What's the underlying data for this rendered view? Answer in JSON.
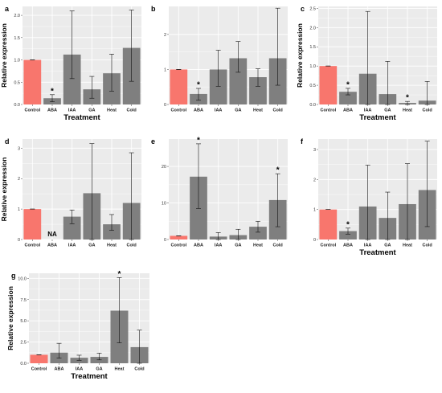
{
  "colors": {
    "control": "#f8766d",
    "treatment": "#7f7f7f",
    "panel_bg": "#ebebeb",
    "grid": "#ffffff"
  },
  "chart_data": [
    {
      "type": "bar",
      "panel": "a",
      "categories": [
        "Control",
        "ABA",
        "IAA",
        "GA",
        "Heat",
        "Cold"
      ],
      "values": [
        1.0,
        0.14,
        1.12,
        0.34,
        0.7,
        1.27
      ],
      "errors": [
        [
          1.0,
          1.0
        ],
        [
          0.06,
          0.22
        ],
        [
          0.58,
          2.1
        ],
        [
          0.14,
          0.63
        ],
        [
          0.3,
          1.13
        ],
        [
          0.52,
          2.12
        ]
      ],
      "significant": [
        false,
        true,
        false,
        false,
        false,
        false
      ],
      "xlabel": "Treatment",
      "ylabel": "Relative expression",
      "ylim": [
        0,
        2.2
      ],
      "yticks": [
        0,
        0.5,
        1.0,
        1.5,
        2.0
      ],
      "yticklabels": [
        "0.0",
        "0.5",
        "1.0",
        "1.5",
        "2.0"
      ],
      "grid": true
    },
    {
      "type": "bar",
      "panel": "b",
      "categories": [
        "Control",
        "ABA",
        "IAA",
        "GA",
        "Heat",
        "Cold"
      ],
      "values": [
        1.0,
        0.3,
        1.0,
        1.32,
        0.78,
        1.32
      ],
      "errors": [
        [
          1.0,
          1.0
        ],
        [
          0.12,
          0.46
        ],
        [
          0.52,
          1.55
        ],
        [
          0.92,
          1.8
        ],
        [
          0.52,
          1.02
        ],
        [
          0.55,
          2.75
        ]
      ],
      "significant": [
        false,
        true,
        false,
        false,
        false,
        false
      ],
      "xlabel": "",
      "ylabel": "",
      "ylim": [
        0,
        2.8
      ],
      "yticks": [
        0,
        1,
        2
      ],
      "yticklabels": [
        "0",
        "1",
        "2"
      ],
      "grid": true
    },
    {
      "type": "bar",
      "panel": "c",
      "categories": [
        "Control",
        "ABA",
        "IAA",
        "GA",
        "Heat",
        "Cold"
      ],
      "values": [
        1.0,
        0.33,
        0.8,
        0.27,
        0.04,
        0.1
      ],
      "errors": [
        [
          1.0,
          1.0
        ],
        [
          0.25,
          0.42
        ],
        [
          0.0,
          2.42
        ],
        [
          0.0,
          1.12
        ],
        [
          0.0,
          0.08
        ],
        [
          0.0,
          0.6
        ]
      ],
      "significant": [
        false,
        true,
        false,
        false,
        true,
        false
      ],
      "xlabel": "Treatment",
      "ylabel": "Relative expression",
      "ylim": [
        0,
        2.55
      ],
      "yticks": [
        0,
        0.5,
        1.0,
        1.5,
        2.0,
        2.5
      ],
      "yticklabels": [
        "0.0",
        "0.5",
        "1.0",
        "1.5",
        "2.0",
        "2.5"
      ],
      "grid": true
    },
    {
      "type": "bar",
      "panel": "d",
      "categories": [
        "Control",
        "ABA",
        "IAA",
        "GA",
        "Heat",
        "Cold"
      ],
      "values": [
        1.0,
        null,
        0.75,
        1.52,
        0.5,
        1.2
      ],
      "errors": [
        [
          1.0,
          1.0
        ],
        null,
        [
          0.52,
          0.97
        ],
        [
          0.0,
          3.15
        ],
        [
          0.3,
          0.82
        ],
        [
          0.0,
          2.85
        ]
      ],
      "significant": [
        false,
        false,
        false,
        false,
        false,
        false
      ],
      "annotations": [
        {
          "category": "ABA",
          "text": "NA"
        }
      ],
      "xlabel": "",
      "ylabel": "Relative expression",
      "ylim": [
        0,
        3.3
      ],
      "yticks": [
        0,
        1,
        2,
        3
      ],
      "yticklabels": [
        "0",
        "1",
        "2",
        "3"
      ],
      "grid": true
    },
    {
      "type": "bar",
      "panel": "e",
      "categories": [
        "Control",
        "ABA",
        "IAA",
        "GA",
        "Heat",
        "Cold"
      ],
      "values": [
        1.0,
        17.2,
        0.8,
        1.2,
        3.5,
        10.8
      ],
      "errors": [
        [
          1.0,
          1.0
        ],
        [
          8.5,
          26.2
        ],
        [
          0.0,
          1.9
        ],
        [
          0.0,
          2.8
        ],
        [
          2.0,
          5.0
        ],
        [
          3.5,
          18.0
        ]
      ],
      "significant": [
        false,
        true,
        false,
        false,
        false,
        true
      ],
      "xlabel": "",
      "ylabel": "",
      "ylim": [
        0,
        27.5
      ],
      "yticks": [
        0,
        10,
        20
      ],
      "yticklabels": [
        "0",
        "10",
        "20"
      ],
      "grid": true
    },
    {
      "type": "bar",
      "panel": "f",
      "categories": [
        "Control",
        "ABA",
        "IAA",
        "GA",
        "Heat",
        "Cold"
      ],
      "values": [
        1.0,
        0.28,
        1.1,
        0.72,
        1.18,
        1.65
      ],
      "errors": [
        [
          1.0,
          1.0
        ],
        [
          0.18,
          0.38
        ],
        [
          0.0,
          2.48
        ],
        [
          0.0,
          1.58
        ],
        [
          0.0,
          2.53
        ],
        [
          0.43,
          3.28
        ]
      ],
      "significant": [
        false,
        true,
        false,
        false,
        false,
        false
      ],
      "xlabel": "Treatment",
      "ylabel": "",
      "ylim": [
        0,
        3.35
      ],
      "yticks": [
        0,
        1,
        2,
        3
      ],
      "yticklabels": [
        "0",
        "1",
        "2",
        "3"
      ],
      "grid": true
    },
    {
      "type": "bar",
      "panel": "g",
      "categories": [
        "Control",
        "ABA",
        "IAA",
        "GA",
        "Heat",
        "Cold"
      ],
      "values": [
        1.0,
        1.25,
        0.65,
        0.75,
        6.2,
        1.9
      ],
      "errors": [
        [
          1.0,
          1.0
        ],
        [
          0.6,
          2.35
        ],
        [
          0.35,
          0.95
        ],
        [
          0.4,
          1.2
        ],
        [
          2.4,
          10.1
        ],
        [
          0.0,
          3.9
        ]
      ],
      "significant": [
        false,
        false,
        false,
        false,
        true,
        false
      ],
      "xlabel": "Treatment",
      "ylabel": "Relative expression",
      "ylim": [
        0,
        10.6
      ],
      "yticks": [
        0,
        2.5,
        5.0,
        7.5,
        10.0
      ],
      "yticklabels": [
        "0.0",
        "2.5",
        "5.0",
        "7.5",
        "10.0"
      ],
      "grid": true
    }
  ]
}
